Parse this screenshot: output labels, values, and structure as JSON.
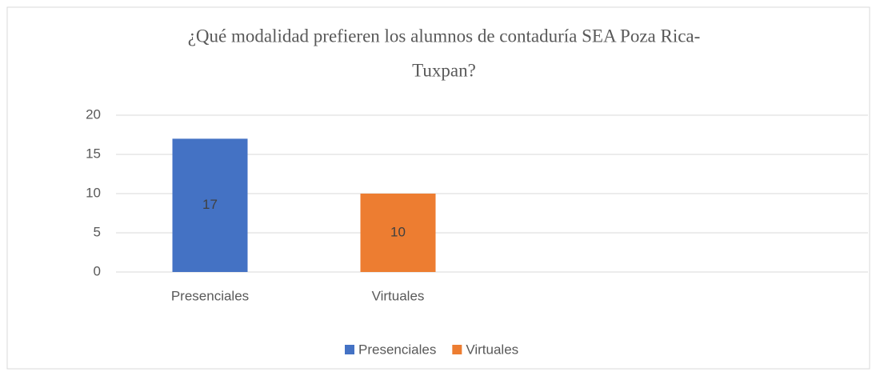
{
  "chart_data": {
    "type": "bar",
    "title": [
      "¿Qué modalidad prefieren los alumnos de contaduría SEA Poza Rica-",
      "Tuxpan?"
    ],
    "categories": [
      "Presenciales",
      "Virtuales",
      null,
      null
    ],
    "values": [
      17,
      10,
      null,
      null
    ],
    "colors": [
      "#4472c4",
      "#ed7d31",
      null,
      null
    ],
    "ylim": [
      0,
      20
    ],
    "yticks": [
      0,
      5,
      10,
      15,
      20
    ],
    "grid": true,
    "legend": "bottom"
  }
}
